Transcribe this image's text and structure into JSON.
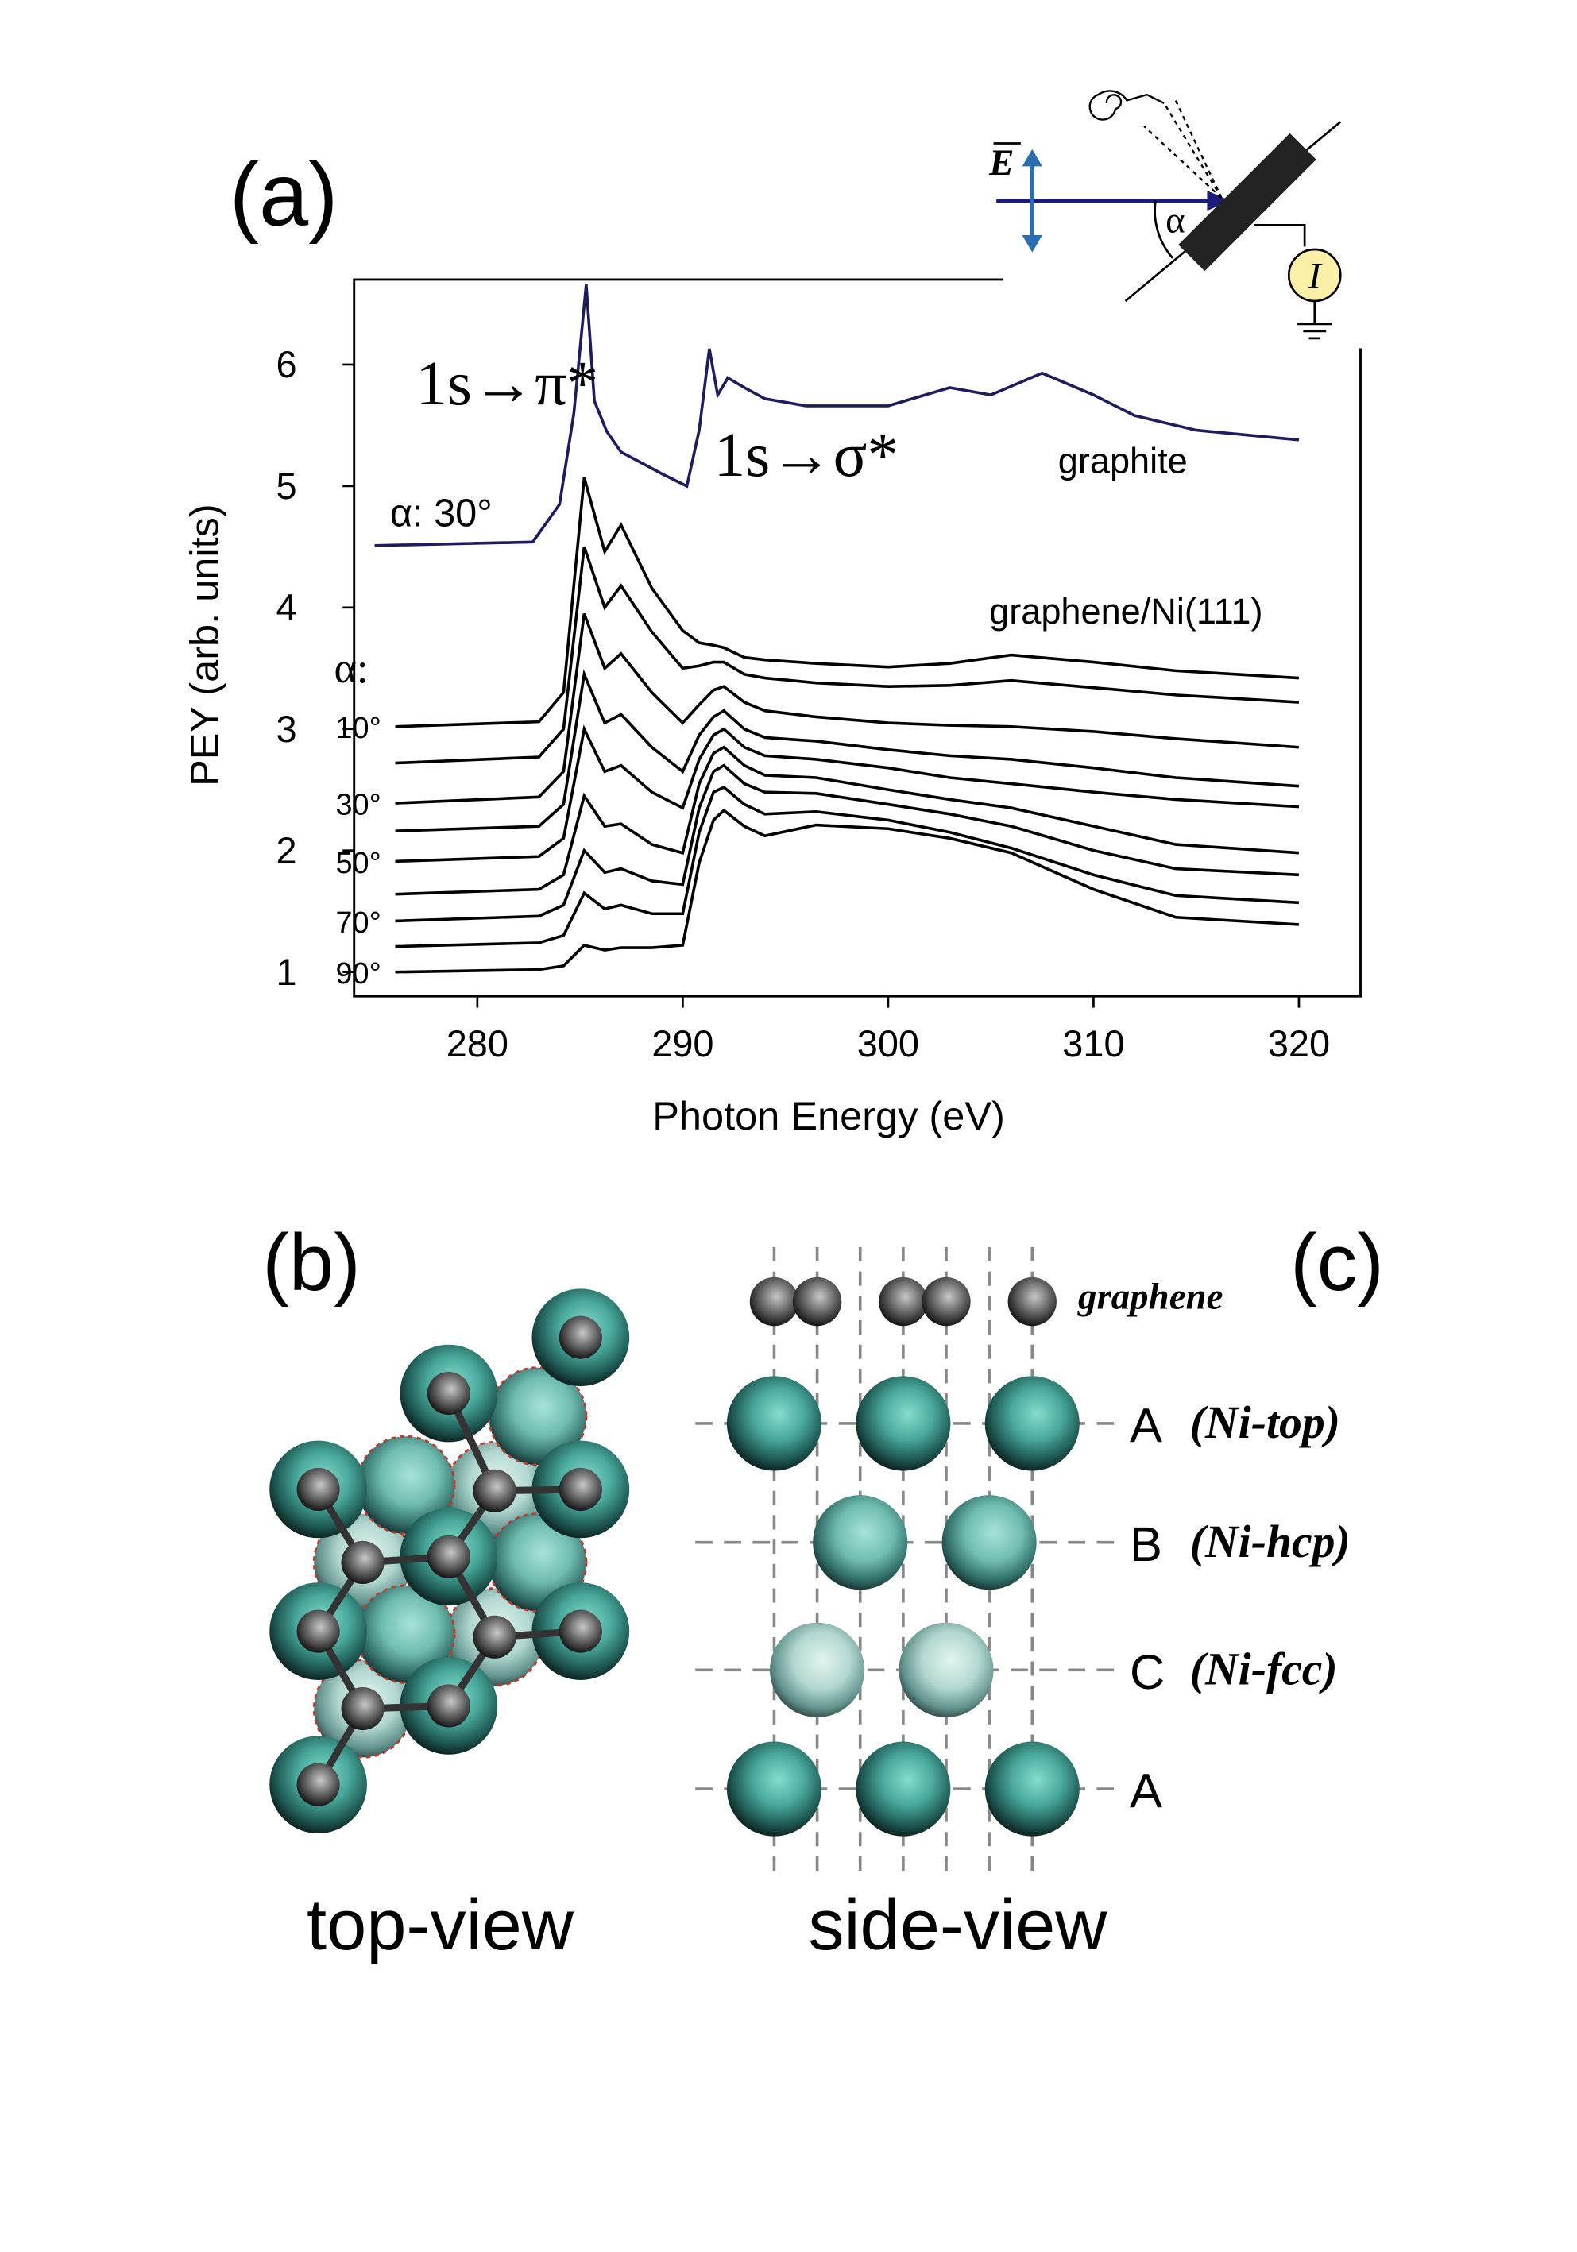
{
  "chart_data": {
    "type": "line",
    "panel_label": "(a)",
    "xlabel": "Photon Energy (eV)",
    "ylabel": "PEY (arb. units)",
    "xlim": [
      274,
      323
    ],
    "ylim": [
      0.8,
      6.7
    ],
    "xticks": [
      280,
      290,
      300,
      310,
      320
    ],
    "yticks": [
      1,
      2,
      3,
      4,
      5,
      6
    ],
    "x": [
      276,
      283,
      284.2,
      285.2,
      286.2,
      287,
      288.5,
      290,
      290.8,
      291.5,
      292,
      293,
      294,
      296.5,
      300,
      303,
      306,
      310,
      314,
      320
    ],
    "series": [
      {
        "name": "graphite",
        "color": "#1c1c5e",
        "x": [
          275,
          282.7,
          284,
          284.7,
          285.3,
          285.7,
          286.3,
          287,
          289,
          290.2,
          290.8,
          291.3,
          291.7,
          292.2,
          293,
          294,
          296,
          300,
          303,
          305,
          307.5,
          310,
          312,
          315,
          320
        ],
        "values": [
          4.51,
          4.54,
          4.85,
          5.6,
          6.66,
          5.7,
          5.45,
          5.28,
          5.1,
          5.0,
          5.46,
          6.13,
          5.75,
          5.89,
          5.81,
          5.72,
          5.66,
          5.66,
          5.81,
          5.75,
          5.93,
          5.75,
          5.58,
          5.46,
          5.38
        ]
      },
      {
        "name": "10°",
        "color": "#000000",
        "values": [
          3.02,
          3.06,
          3.3,
          5.07,
          4.46,
          4.68,
          4.16,
          3.81,
          3.71,
          3.69,
          3.67,
          3.59,
          3.57,
          3.54,
          3.51,
          3.54,
          3.61,
          3.55,
          3.48,
          3.42
        ]
      },
      {
        "color": "#000000",
        "values": [
          2.72,
          2.77,
          3.0,
          4.5,
          4.0,
          4.18,
          3.8,
          3.5,
          3.52,
          3.55,
          3.55,
          3.45,
          3.42,
          3.38,
          3.35,
          3.36,
          3.4,
          3.34,
          3.28,
          3.22
        ]
      },
      {
        "name": "30°",
        "color": "#000000",
        "values": [
          2.39,
          2.44,
          2.65,
          3.95,
          3.5,
          3.62,
          3.3,
          3.05,
          3.2,
          3.32,
          3.35,
          3.22,
          3.15,
          3.1,
          3.05,
          3.03,
          3.02,
          2.98,
          2.92,
          2.85
        ]
      },
      {
        "color": "#000000",
        "values": [
          2.16,
          2.2,
          2.38,
          3.45,
          3.05,
          3.12,
          2.85,
          2.65,
          2.95,
          3.1,
          3.15,
          3.0,
          2.93,
          2.9,
          2.83,
          2.78,
          2.75,
          2.68,
          2.6,
          2.53
        ]
      },
      {
        "name": "50°",
        "color": "#000000",
        "values": [
          1.91,
          1.95,
          2.1,
          3.0,
          2.65,
          2.7,
          2.48,
          2.35,
          2.75,
          2.95,
          3.0,
          2.85,
          2.78,
          2.75,
          2.68,
          2.6,
          2.55,
          2.48,
          2.42,
          2.36
        ]
      },
      {
        "color": "#000000",
        "values": [
          1.64,
          1.68,
          1.8,
          2.45,
          2.2,
          2.22,
          2.05,
          1.98,
          2.55,
          2.8,
          2.85,
          2.7,
          2.62,
          2.6,
          2.5,
          2.42,
          2.35,
          2.2,
          2.05,
          1.98
        ]
      },
      {
        "name": "70°",
        "color": "#000000",
        "values": [
          1.42,
          1.46,
          1.55,
          2.0,
          1.82,
          1.85,
          1.75,
          1.72,
          2.35,
          2.65,
          2.7,
          2.55,
          2.48,
          2.47,
          2.38,
          2.3,
          2.2,
          2.0,
          1.85,
          1.8
        ]
      },
      {
        "color": "#000000",
        "values": [
          1.21,
          1.24,
          1.3,
          1.65,
          1.52,
          1.55,
          1.48,
          1.48,
          2.15,
          2.48,
          2.52,
          2.38,
          2.3,
          2.32,
          2.25,
          2.15,
          2.02,
          1.8,
          1.63,
          1.57
        ]
      },
      {
        "name": "90°",
        "color": "#000000",
        "values": [
          1.0,
          1.02,
          1.05,
          1.22,
          1.18,
          1.2,
          1.2,
          1.22,
          1.9,
          2.25,
          2.33,
          2.2,
          2.12,
          2.21,
          2.18,
          2.1,
          1.98,
          1.68,
          1.45,
          1.39
        ]
      }
    ],
    "annotations": [
      "1s→π*",
      "1s→σ*",
      "α: 30°",
      "graphene/Ni(111)",
      "α:"
    ]
  },
  "inset": {
    "field": "E",
    "angle": "α",
    "current": "I"
  },
  "panel_b": {
    "label": "(b)",
    "caption": "top-view"
  },
  "panel_c": {
    "label": "(c)",
    "caption": "side-view",
    "graphene": "graphene",
    "layers": [
      {
        "stack": "A",
        "site": "(Ni-top)"
      },
      {
        "stack": "B",
        "site": "(Ni-hcp)"
      },
      {
        "stack": "C",
        "site": "(Ni-fcc)"
      },
      {
        "stack": "A"
      }
    ]
  }
}
